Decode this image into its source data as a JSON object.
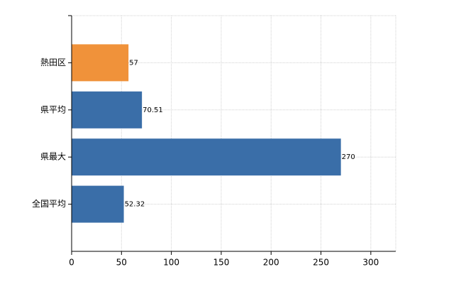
{
  "chart_data": {
    "type": "hbar",
    "categories": [
      "熱田区",
      "県平均",
      "県最大",
      "全国平均"
    ],
    "values": [
      57,
      70.51,
      270,
      52.32
    ],
    "colors": [
      "#f0923a",
      "#3a6ea8",
      "#3a6ea8",
      "#3a6ea8"
    ],
    "xlim": [
      0,
      325
    ],
    "xticks": [
      0,
      50,
      100,
      150,
      200,
      250,
      300
    ],
    "grid": true
  }
}
